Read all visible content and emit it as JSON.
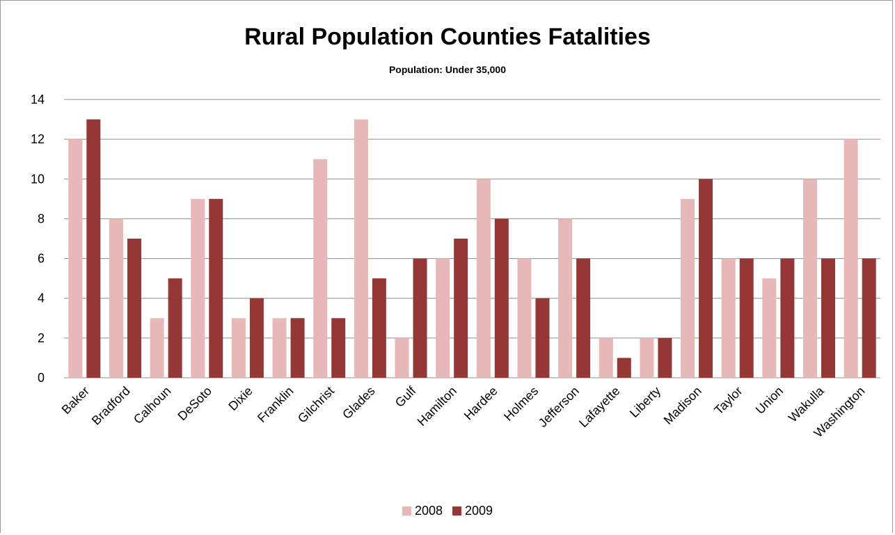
{
  "chart_data": {
    "type": "bar",
    "title": "Rural Population Counties Fatalities",
    "subtitle": "Population:  Under 35,000",
    "xlabel": "",
    "ylabel": "",
    "ylim": [
      0,
      14
    ],
    "yticks": [
      "0",
      "2",
      "4",
      "6",
      "8",
      "10",
      "12",
      "14"
    ],
    "grid": true,
    "legend_position": "bottom",
    "categories": [
      "Baker",
      "Bradford",
      "Calhoun",
      "DeSoto",
      "Dixie",
      "Franklin",
      "Gilchrist",
      "Glades",
      "Gulf",
      "Hamilton",
      "Hardee",
      "Holmes",
      "Jefferson",
      "Lafayette",
      "Liberty",
      "Madison",
      "Taylor",
      "Union",
      "Wakulla",
      "Washington"
    ],
    "series": [
      {
        "name": "2008",
        "color": "#e6b9b8",
        "values": [
          12,
          8,
          3,
          9,
          3,
          3,
          11,
          13,
          2,
          6,
          10,
          6,
          8,
          2,
          2,
          9,
          6,
          5,
          10,
          12
        ]
      },
      {
        "name": "2009",
        "color": "#953735",
        "values": [
          13,
          7,
          5,
          9,
          4,
          3,
          3,
          5,
          6,
          7,
          8,
          4,
          6,
          1,
          2,
          10,
          6,
          6,
          6,
          6
        ]
      }
    ]
  }
}
